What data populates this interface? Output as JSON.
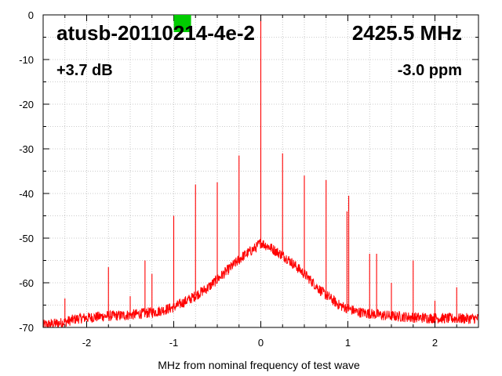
{
  "chart_data": {
    "type": "line",
    "title_left": "atusb-20110214-4e-2",
    "title_right": "2425.5 MHz",
    "gain_label": "+3.7 dB",
    "ppm_label": "-3.0 ppm",
    "xlabel": "MHz from nominal frequency of test wave",
    "ylabel": "",
    "xlim": [
      -2.5,
      2.5
    ],
    "ylim": [
      -70,
      0
    ],
    "x_ticks": [
      -2,
      -1,
      0,
      1,
      2
    ],
    "y_ticks": [
      0,
      -10,
      -20,
      -30,
      -40,
      -50,
      -60,
      -70
    ],
    "grid": true,
    "grid_style": "dotted",
    "series_color": "#ff0000",
    "marker_color": "#00cc00",
    "noise_floor": [
      [
        -2.5,
        -69.5
      ],
      [
        -2.3,
        -69.0
      ],
      [
        -2.1,
        -68.0
      ],
      [
        -1.8,
        -67.5
      ],
      [
        -1.5,
        -67.2
      ],
      [
        -1.2,
        -66.5
      ],
      [
        -1.0,
        -65.5
      ],
      [
        -0.8,
        -63.5
      ],
      [
        -0.6,
        -61.0
      ],
      [
        -0.4,
        -57.5
      ],
      [
        -0.2,
        -54.0
      ],
      [
        -0.05,
        -52.0
      ],
      [
        0.0,
        -51.0
      ],
      [
        0.1,
        -52.0
      ],
      [
        0.3,
        -54.5
      ],
      [
        0.5,
        -58.0
      ],
      [
        0.7,
        -62.0
      ],
      [
        0.9,
        -65.0
      ],
      [
        1.1,
        -66.5
      ],
      [
        1.4,
        -67.3
      ],
      [
        1.8,
        -67.8
      ],
      [
        2.2,
        -68.0
      ],
      [
        2.5,
        -68.0
      ]
    ],
    "spurs": [
      {
        "x": -2.25,
        "y": -63.5
      },
      {
        "x": -1.75,
        "y": -56.5
      },
      {
        "x": -1.5,
        "y": -63.0
      },
      {
        "x": -1.33,
        "y": -55.0
      },
      {
        "x": -1.25,
        "y": -58.0
      },
      {
        "x": -1.0,
        "y": -45.0
      },
      {
        "x": -0.75,
        "y": -38.0
      },
      {
        "x": -0.5,
        "y": -37.5
      },
      {
        "x": -0.25,
        "y": -31.5
      },
      {
        "x": 0.0,
        "y": 0.0
      },
      {
        "x": 0.25,
        "y": -31.0
      },
      {
        "x": 0.5,
        "y": -36.0
      },
      {
        "x": 0.75,
        "y": -37.0
      },
      {
        "x": 0.99,
        "y": -44.0
      },
      {
        "x": 1.01,
        "y": -40.5
      },
      {
        "x": 1.25,
        "y": -53.5
      },
      {
        "x": 1.33,
        "y": -53.5
      },
      {
        "x": 1.5,
        "y": -60.0
      },
      {
        "x": 1.75,
        "y": -55.0
      },
      {
        "x": 2.0,
        "y": -64.0
      },
      {
        "x": 2.25,
        "y": -61.0
      }
    ],
    "marker": {
      "x": -0.9,
      "y": -1.5
    }
  }
}
